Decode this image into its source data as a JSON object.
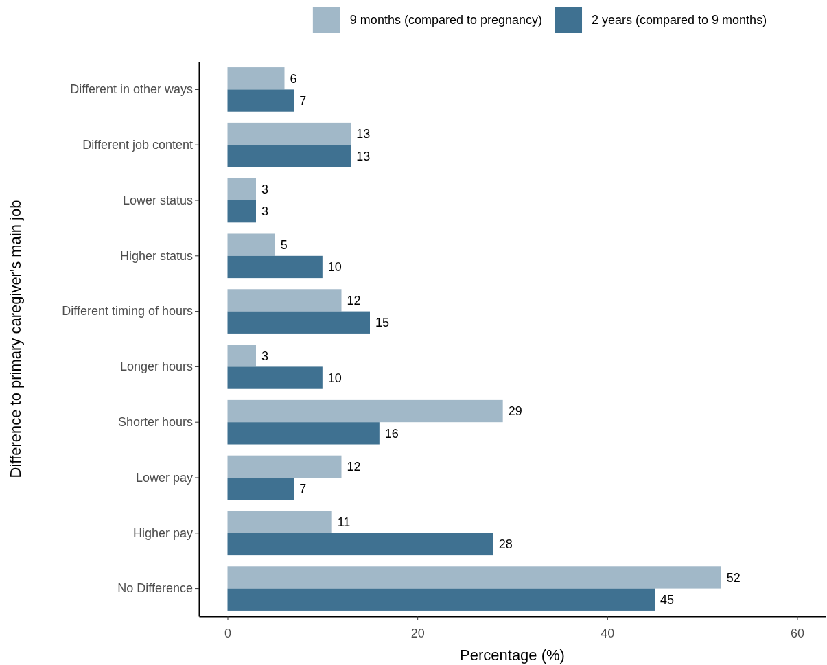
{
  "chart_data": {
    "type": "bar",
    "orientation": "horizontal",
    "xlabel": "Percentage (%)",
    "ylabel": "Difference to primary caregiver's main job",
    "categories": [
      "Different in other ways",
      "Different job content",
      "Lower status",
      "Higher status",
      "Different timing of hours",
      "Longer hours",
      "Shorter hours",
      "Lower pay",
      "Higher pay",
      "No Difference"
    ],
    "series": [
      {
        "name": "9 months (compared to pregnancy)",
        "color": "#a1b8c8",
        "values": [
          6,
          13,
          3,
          5,
          12,
          3,
          29,
          12,
          11,
          52
        ]
      },
      {
        "name": "2 years (compared to 9 months)",
        "color": "#3f7191",
        "values": [
          7,
          13,
          3,
          10,
          15,
          10,
          16,
          7,
          28,
          45
        ]
      }
    ],
    "xlim": [
      -3,
      63
    ],
    "xticks": [
      0,
      20,
      40,
      60
    ],
    "data_labels": true,
    "legend": "top",
    "grid": false
  }
}
